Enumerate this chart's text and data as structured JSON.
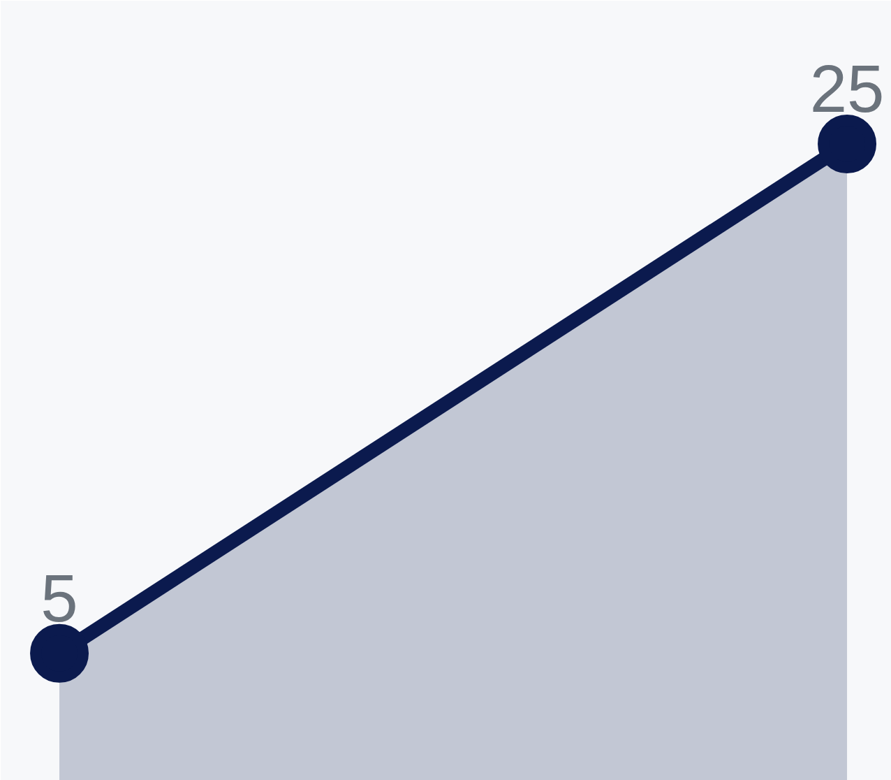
{
  "chart_data": {
    "type": "area",
    "categories": [
      null,
      null
    ],
    "series": [
      {
        "color": "#0b1a4e",
        "values": [
          5,
          25
        ]
      }
    ],
    "marker": "circle",
    "data_labels": true
  }
}
